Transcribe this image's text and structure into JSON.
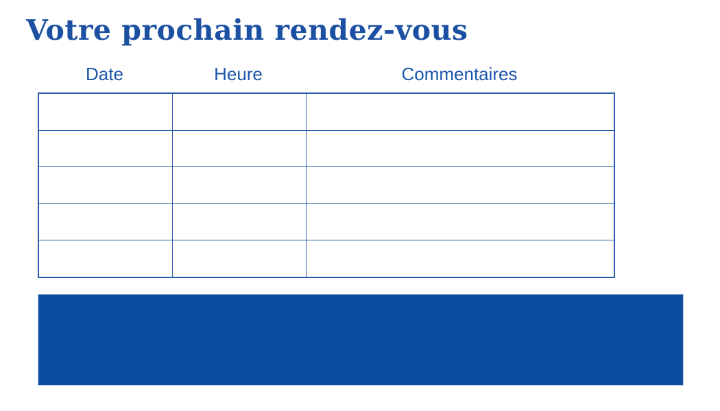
{
  "page": {
    "title": "Votre prochain rendez-vous"
  },
  "table": {
    "column_headers": [
      "Date",
      "Heure",
      "Commentaires"
    ],
    "rows": [
      [
        "",
        "",
        ""
      ],
      [
        "",
        "",
        ""
      ],
      [
        "",
        "",
        ""
      ],
      [
        "",
        "",
        ""
      ],
      [
        "",
        "",
        ""
      ]
    ]
  },
  "colors": {
    "background": "#ffffff",
    "title_blue": "#1b50a2",
    "header_blue": "#1c55aa",
    "border_blue": "#2b5cab",
    "accent_blue": "#0d4da0"
  }
}
